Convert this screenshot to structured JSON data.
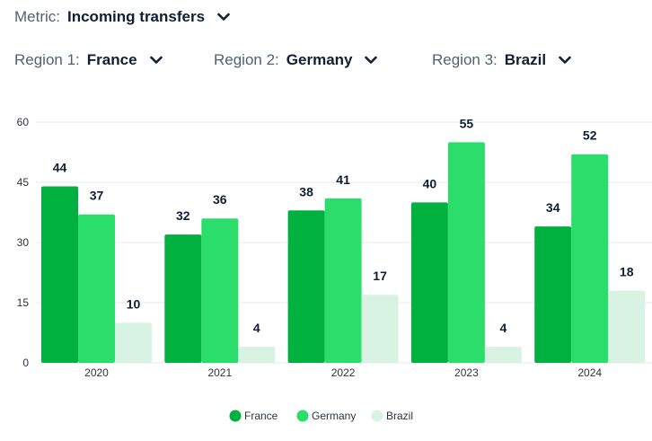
{
  "controls": {
    "metric": {
      "label": "Metric:",
      "value": "Incoming transfers"
    },
    "region1": {
      "label": "Region 1:",
      "value": "France"
    },
    "region2": {
      "label": "Region 2:",
      "value": "Germany"
    },
    "region3": {
      "label": "Region 3:",
      "value": "Brazil"
    }
  },
  "chart_data": {
    "type": "bar",
    "title": "",
    "xlabel": "",
    "ylabel": "",
    "categories": [
      "2020",
      "2021",
      "2022",
      "2023",
      "2024"
    ],
    "series": [
      {
        "name": "France",
        "values": [
          44,
          32,
          38,
          40,
          34
        ],
        "color": "#00b140"
      },
      {
        "name": "Germany",
        "values": [
          37,
          36,
          41,
          55,
          52
        ],
        "color": "#2bdd6b"
      },
      {
        "name": "Brazil",
        "values": [
          10,
          4,
          17,
          4,
          18
        ],
        "color": "#d8f3e3"
      }
    ],
    "ylim": [
      0,
      60
    ],
    "yticks": [
      0,
      15,
      30,
      45,
      60
    ],
    "grid": true,
    "data_labels": true,
    "legend": "bottom-center"
  }
}
